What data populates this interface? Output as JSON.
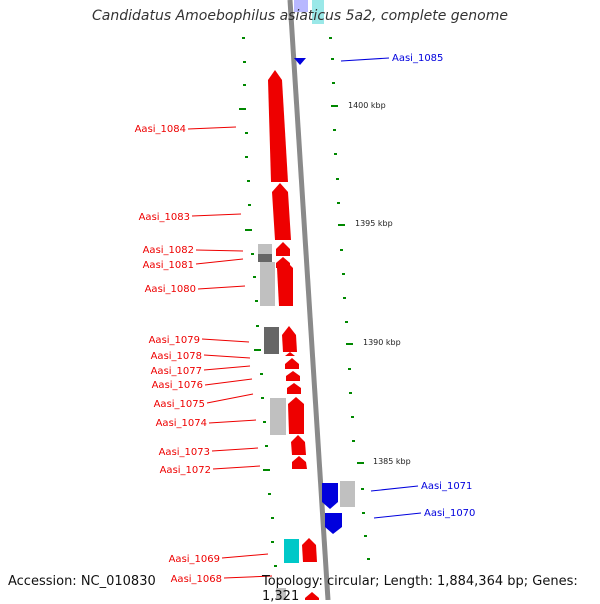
{
  "title": "Candidatus Amoebophilus asiaticus 5a2, complete genome",
  "footer": {
    "accession": "Accession: NC_010830",
    "summary": "Topology: circular; Length: 1,884,364 bp; Genes: 1,321"
  },
  "colors": {
    "backbone": "#8a8a8a",
    "minus_strand_genes": "#ee0000",
    "plus_strand_genes": "#0000dd",
    "tick": "#008800",
    "rna_gene": "#00c8c8",
    "neutral_gene": "#bbbbbb"
  },
  "scale_labels": [
    "1400 kbp",
    "1395 kbp",
    "1390 kbp",
    "1385 kbp"
  ],
  "minus_strand_genes": [
    "Aasi_1084",
    "Aasi_1083",
    "Aasi_1082",
    "Aasi_1081",
    "Aasi_1080",
    "Aasi_1079",
    "Aasi_1078",
    "Aasi_1077",
    "Aasi_1076",
    "Aasi_1075",
    "Aasi_1074",
    "Aasi_1073",
    "Aasi_1072",
    "Aasi_1069",
    "Aasi_1068"
  ],
  "plus_strand_genes": [
    "Aasi_1085",
    "Aasi_1071",
    "Aasi_1070"
  ]
}
